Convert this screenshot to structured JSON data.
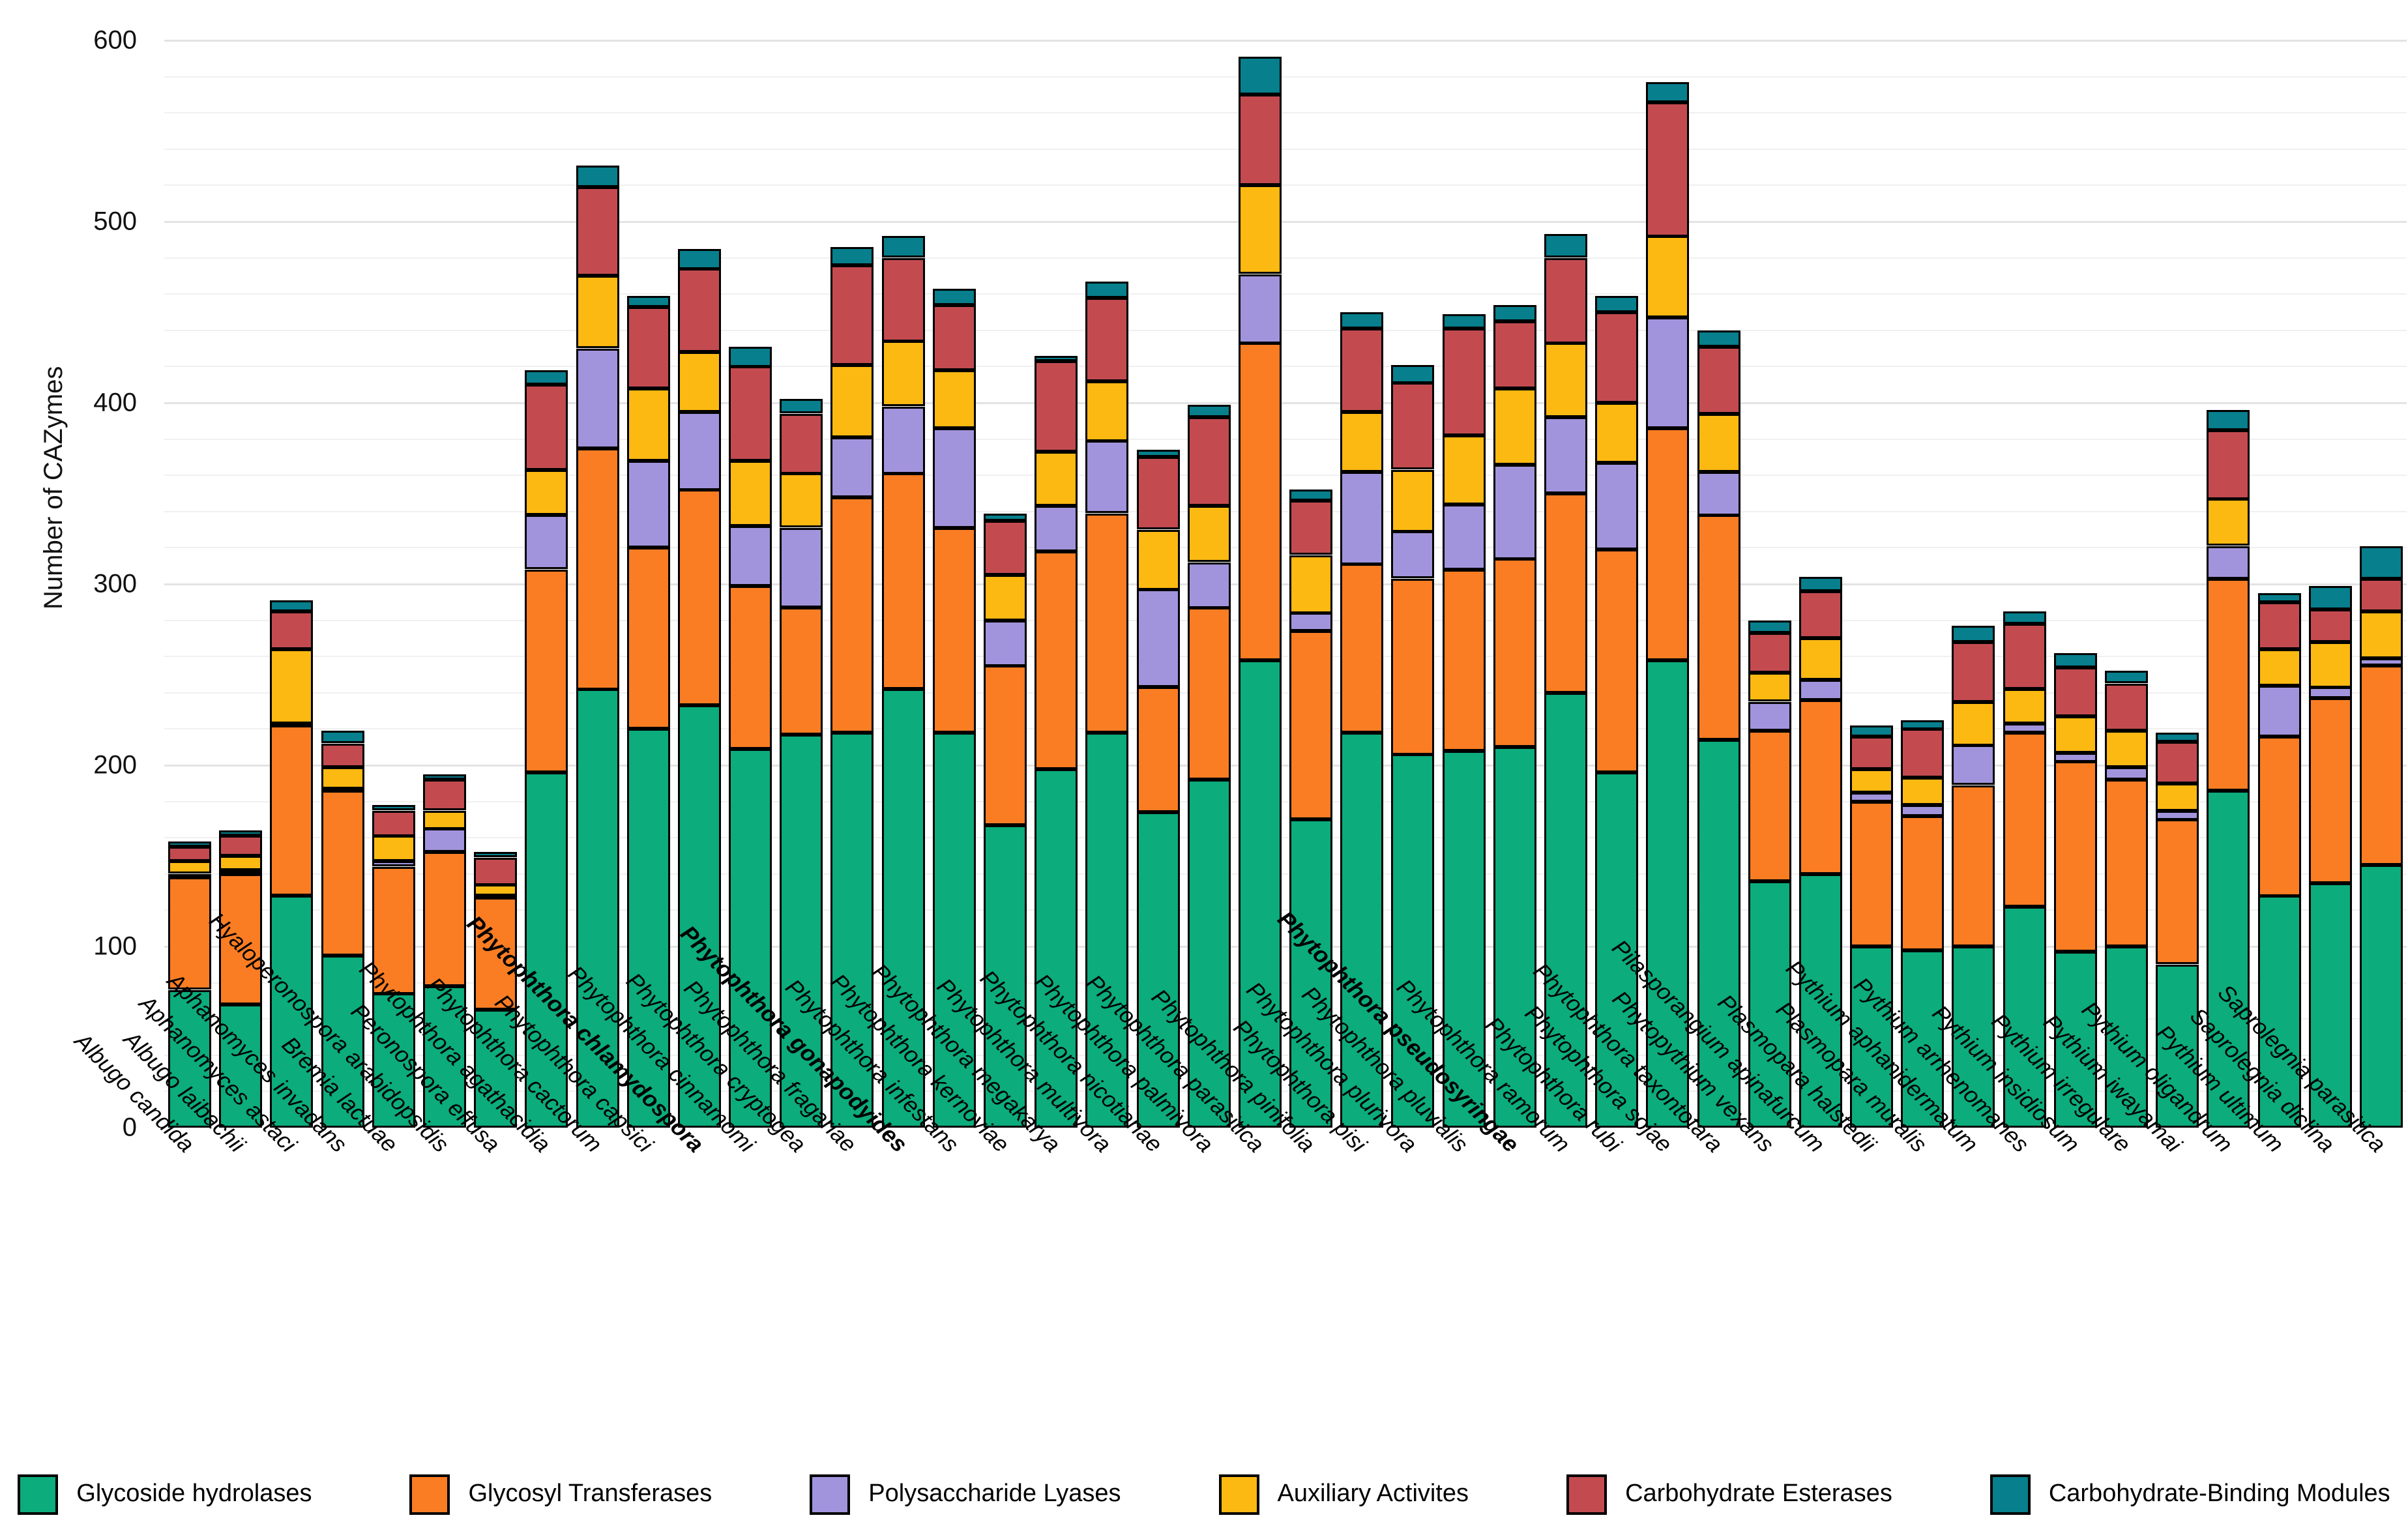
{
  "y_axis": {
    "title": "Number of CAZymes",
    "min": 0,
    "max": 600,
    "major_tick_step": 100,
    "minor_grid_step": 20,
    "tick_labels": [
      "0",
      "100",
      "200",
      "300",
      "400",
      "500",
      "600"
    ]
  },
  "legend_labels": [
    "Glycoside hydrolases",
    "Glycosyl Transferases",
    "Polysaccharide Lyases",
    "Auxiliary Activites",
    "Carbohydrate Esterases",
    "Carbohydrate-Binding Modules"
  ],
  "chart_data": {
    "type": "bar",
    "stacked": true,
    "title": "",
    "xlabel": "",
    "ylabel": "Number of CAZymes",
    "ylim": [
      0,
      600
    ],
    "grid": true,
    "legend_position": "bottom",
    "categories": [
      "Albugo candida",
      "Albugo laibachii",
      "Aphanomyces astaci",
      "Aphanomyces invadans",
      "Bremia lactuae",
      "Hyaloperonospora arabidopsidis",
      "Peronospora effusa",
      "Phytophthora agathacidia",
      "Phytophthora cactorum",
      "Phytophthora capsici",
      "Phytophthora chlamydospora",
      "Phytophthora cinnamomi",
      "Phytophthora cryptogea",
      "Phytophthora fragariae",
      "Phytophthora gonapodyides",
      "Phytophthora infestans",
      "Phytophthora kernoviae",
      "Phytophthora megakarya",
      "Phytophthora multivora",
      "Phytophthora nicotianae",
      "Phytophthora palmivora",
      "Phytophthora parasitica",
      "Phytophthora pinifolia",
      "Phytophthora pisi",
      "Phytophthora plurivora",
      "Phytophthora pluvialis",
      "Phytophthora pseudosyringae",
      "Phytophthora ramorum",
      "Phytophthora rubi",
      "Phytophthora sojae",
      "Phytophthora taxontotara",
      "Phytopythium vexans",
      "Pilasporangium apinafurcum",
      "Plasmopara halstedii",
      "Plasmopara muralis",
      "Pythium aphanidermatum",
      "Pythium arrhenomanes",
      "Pythium insidiosum",
      "Pythium irregulare",
      "Pythium iwayamai",
      "Pythium oligandrum",
      "Pythium ultimum",
      "Saprolegnia diclina",
      "Saprolegnia parasitica"
    ],
    "bold_categories": [
      "Phytophthora chlamydospora",
      "Phytophthora gonapodyides",
      "Phytophthora pseudosyringae"
    ],
    "series": [
      {
        "name": "Glycoside hydrolases",
        "color": "#0cac7c",
        "values": [
          76,
          68,
          128,
          95,
          74,
          78,
          65,
          196,
          242,
          220,
          233,
          209,
          217,
          218,
          242,
          218,
          167,
          198,
          218,
          174,
          192,
          258,
          170,
          218,
          206,
          208,
          210,
          240,
          196,
          258,
          214,
          136,
          140,
          100,
          98,
          100,
          122,
          97,
          100,
          90,
          186,
          128,
          135,
          145
        ]
      },
      {
        "name": "Glycosyl Transferases",
        "color": "#fa7d23",
        "values": [
          62,
          72,
          94,
          91,
          70,
          74,
          62,
          112,
          133,
          100,
          119,
          90,
          70,
          130,
          119,
          113,
          88,
          120,
          121,
          69,
          95,
          175,
          104,
          93,
          97,
          100,
          104,
          110,
          123,
          128,
          124,
          83,
          96,
          80,
          74,
          89,
          96,
          105,
          92,
          80,
          117,
          88,
          102,
          110
        ]
      },
      {
        "name": "Polysaccharide Lyases",
        "color": "#a294dc",
        "values": [
          2,
          2,
          1,
          1,
          3,
          13,
          1,
          30,
          55,
          48,
          43,
          33,
          44,
          33,
          37,
          55,
          25,
          25,
          40,
          54,
          25,
          38,
          10,
          51,
          26,
          36,
          52,
          42,
          48,
          61,
          24,
          16,
          11,
          5,
          6,
          22,
          5,
          5,
          7,
          5,
          18,
          28,
          6,
          4
        ]
      },
      {
        "name": "Auxiliary Activites",
        "color": "#fcb912",
        "values": [
          7,
          8,
          41,
          12,
          14,
          10,
          6,
          25,
          40,
          40,
          33,
          36,
          30,
          40,
          36,
          32,
          25,
          30,
          33,
          33,
          31,
          49,
          32,
          33,
          34,
          38,
          42,
          41,
          33,
          45,
          32,
          16,
          23,
          13,
          15,
          24,
          19,
          20,
          20,
          15,
          26,
          20,
          25,
          26
        ]
      },
      {
        "name": "Carbohydrate Esterases",
        "color": "#c34b50",
        "values": [
          8,
          11,
          21,
          13,
          14,
          17,
          15,
          47,
          49,
          45,
          46,
          52,
          33,
          55,
          46,
          36,
          30,
          50,
          46,
          40,
          49,
          50,
          30,
          46,
          48,
          59,
          37,
          47,
          50,
          74,
          37,
          22,
          26,
          18,
          27,
          33,
          36,
          27,
          26,
          23,
          38,
          26,
          18,
          18
        ]
      },
      {
        "name": "Carbohydrate-Binding Modules",
        "color": "#077f8c",
        "values": [
          3,
          3,
          6,
          7,
          3,
          3,
          3,
          8,
          12,
          6,
          11,
          11,
          8,
          10,
          12,
          9,
          4,
          3,
          9,
          4,
          7,
          21,
          6,
          9,
          10,
          8,
          9,
          13,
          9,
          11,
          9,
          7,
          8,
          6,
          5,
          9,
          7,
          8,
          7,
          5,
          11,
          5,
          13,
          18
        ]
      }
    ]
  }
}
